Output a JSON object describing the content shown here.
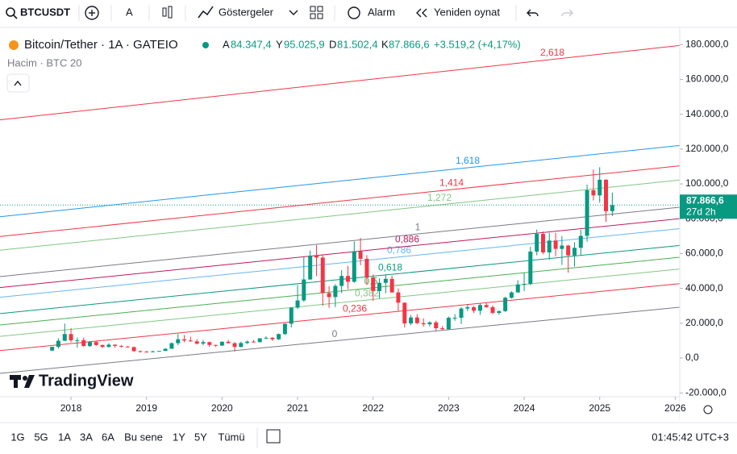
{
  "toolbar": {
    "symbol": "BTCUSDT",
    "font_button": "A",
    "indicators": "Göstergeler",
    "alarm": "Alarm",
    "replay": "Yeniden oynat"
  },
  "legend": {
    "title": "Bitcoin/Tether · 1A · GATEIO",
    "open_key": "A",
    "open": "84.347,4",
    "high_key": "Y",
    "high": "95.025,9",
    "low_key": "D",
    "low": "81.502,4",
    "close_key": "K",
    "close": "87.866,6",
    "change": "+3.519,2 (+4,17%)",
    "volume": "Hacim · BTC 20"
  },
  "logo": "TradingView",
  "footer": {
    "ranges": [
      "1G",
      "5G",
      "1A",
      "3A",
      "6A",
      "Bu sene",
      "1Y",
      "5Y",
      "Tümü"
    ],
    "clock": "01:45:42 UTC+3"
  },
  "chart_data": {
    "type": "candlestick",
    "up_color": "#089981",
    "down_color": "#f23645",
    "x": [
      2017.75,
      2017.833,
      2017.917,
      2018.0,
      2018.083,
      2018.167,
      2018.25,
      2018.333,
      2018.417,
      2018.5,
      2018.583,
      2018.667,
      2018.75,
      2018.833,
      2018.917,
      2019.0,
      2019.083,
      2019.167,
      2019.25,
      2019.333,
      2019.417,
      2019.5,
      2019.583,
      2019.667,
      2019.75,
      2019.833,
      2019.917,
      2020.0,
      2020.083,
      2020.167,
      2020.25,
      2020.333,
      2020.417,
      2020.5,
      2020.583,
      2020.667,
      2020.75,
      2020.833,
      2020.917,
      2021.0,
      2021.083,
      2021.167,
      2021.25,
      2021.333,
      2021.417,
      2021.5,
      2021.583,
      2021.667,
      2021.75,
      2021.833,
      2021.917,
      2022.0,
      2022.083,
      2022.167,
      2022.25,
      2022.333,
      2022.417,
      2022.5,
      2022.583,
      2022.667,
      2022.75,
      2022.833,
      2022.917,
      2023.0,
      2023.083,
      2023.167,
      2023.25,
      2023.333,
      2023.417,
      2023.5,
      2023.583,
      2023.667,
      2023.75,
      2023.833,
      2023.917,
      2024.0,
      2024.083,
      2024.167,
      2024.25,
      2024.333,
      2024.417,
      2024.5,
      2024.583,
      2024.667,
      2024.75,
      2024.833,
      2024.917,
      2025.0,
      2025.083,
      2025.167
    ],
    "open": [
      4300,
      6450,
      9950,
      13800,
      10200,
      10300,
      6900,
      9200,
      7500,
      6400,
      7700,
      7000,
      6600,
      6300,
      4000,
      3700,
      3450,
      3850,
      4100,
      5350,
      8550,
      10800,
      10100,
      9600,
      8300,
      9150,
      7550,
      7200,
      9350,
      8550,
      6400,
      8650,
      9450,
      9150,
      11350,
      11650,
      10800,
      13800,
      19700,
      28950,
      33100,
      45150,
      58800,
      57700,
      37300,
      35050,
      41450,
      47150,
      43800,
      61300,
      57000,
      46300,
      38500,
      43200,
      45500,
      37700,
      31800,
      19900,
      23300,
      20050,
      19400,
      20500,
      17150,
      16550,
      23150,
      23150,
      28450,
      29250,
      27200,
      30450,
      29250,
      25950,
      26950,
      34650,
      37700,
      42300,
      42600,
      61150,
      71300,
      60650,
      67500,
      62700,
      64600,
      58950,
      63300,
      70200,
      96400,
      93400,
      102400,
      84347.4
    ],
    "high": [
      6470,
      11400,
      19800,
      17200,
      11800,
      11700,
      9800,
      10000,
      7800,
      8500,
      7800,
      7400,
      7000,
      6600,
      4400,
      4100,
      4200,
      4100,
      5600,
      9000,
      13900,
      13200,
      12300,
      10900,
      10400,
      9500,
      7700,
      9600,
      10500,
      9200,
      9450,
      10100,
      10400,
      11450,
      12500,
      12100,
      14100,
      19950,
      29300,
      41900,
      58400,
      61800,
      64900,
      59600,
      41300,
      42400,
      50500,
      52900,
      67000,
      69000,
      59100,
      48000,
      45800,
      48200,
      47400,
      40000,
      31900,
      24700,
      25200,
      22800,
      21100,
      21500,
      18400,
      23900,
      25250,
      29200,
      31000,
      29800,
      31400,
      31800,
      30200,
      27500,
      35200,
      38400,
      44700,
      48950,
      63900,
      73800,
      72700,
      71950,
      71950,
      70000,
      65100,
      66500,
      73600,
      99600,
      108300,
      109600,
      102700,
      95025.9
    ],
    "low": [
      4100,
      5500,
      9700,
      9000,
      6000,
      6600,
      6400,
      7000,
      5800,
      6100,
      5900,
      6100,
      6200,
      3500,
      3100,
      3350,
      3400,
      3700,
      4050,
      5300,
      7450,
      9100,
      9350,
      7700,
      7300,
      6500,
      6400,
      6850,
      8450,
      3800,
      6150,
      8100,
      8900,
      8950,
      10950,
      9850,
      10400,
      13200,
      17600,
      28150,
      32300,
      45000,
      47000,
      30000,
      28800,
      29300,
      37300,
      39600,
      43300,
      53300,
      42000,
      32900,
      34300,
      37200,
      37600,
      26700,
      17600,
      18800,
      19600,
      18100,
      18200,
      15500,
      16300,
      16500,
      21400,
      19550,
      26950,
      25800,
      24800,
      28850,
      25150,
      24900,
      26550,
      34100,
      37600,
      38500,
      41900,
      59000,
      59600,
      56500,
      58400,
      53500,
      49000,
      52550,
      58900,
      66800,
      90500,
      89200,
      78200,
      81502.4
    ],
    "close": [
      6450,
      9950,
      13800,
      10200,
      10300,
      6900,
      9200,
      7500,
      6400,
      7700,
      7000,
      6600,
      6300,
      4000,
      3700,
      3450,
      3850,
      4100,
      5350,
      8550,
      10800,
      10100,
      9600,
      8300,
      9150,
      7550,
      7200,
      9350,
      8550,
      6400,
      8650,
      9450,
      9150,
      11350,
      11650,
      10800,
      13800,
      19700,
      28950,
      33100,
      45150,
      58800,
      57700,
      37300,
      35050,
      41450,
      47150,
      43800,
      61300,
      57000,
      46300,
      38500,
      43200,
      45500,
      37700,
      31800,
      19900,
      23300,
      20050,
      19400,
      20500,
      17150,
      16550,
      23150,
      23150,
      28450,
      29250,
      27200,
      30450,
      29250,
      25950,
      26950,
      34650,
      37700,
      42300,
      42600,
      61150,
      71300,
      60650,
      67500,
      62700,
      64600,
      58950,
      63300,
      70200,
      96400,
      93400,
      102400,
      84350,
      87866.6
    ],
    "xlim": [
      2017.06,
      2026.06
    ],
    "xticks": [
      2018,
      2019,
      2020,
      2021,
      2022,
      2023,
      2024,
      2025,
      2026
    ],
    "ylim": [
      -22200,
      188000
    ],
    "yticks": [
      {
        "value": -20000,
        "label": "-20.000,0"
      },
      {
        "value": 0,
        "label": "0,0"
      },
      {
        "value": 20000,
        "label": "20.000,0"
      },
      {
        "value": 40000,
        "label": "40.000,0"
      },
      {
        "value": 60000,
        "label": "60.000,0"
      },
      {
        "value": 80000,
        "label": "80.000,0"
      },
      {
        "value": 100000,
        "label": "100.000,0"
      },
      {
        "value": 120000,
        "label": "120.000,0"
      },
      {
        "value": 140000,
        "label": "140.000,0"
      },
      {
        "value": 160000,
        "label": "160.000,0"
      },
      {
        "value": 180000,
        "label": "180.000,0"
      }
    ],
    "last_price": {
      "value": 87866.6,
      "label": "87.866,6"
    },
    "countdown": "27d 2h",
    "fib": {
      "x": [
        2017.06,
        2026.06
      ],
      "base": [
        -8800,
        29200
      ],
      "top": [
        46800,
        86600
      ],
      "levels": [
        0,
        {
          "value": 0.236,
          "label": "0,236"
        },
        {
          "value": 0.382,
          "label": "0,382"
        },
        {
          "value": 0.5,
          "label": "0,5"
        },
        {
          "value": 0.618,
          "label": "0,618"
        },
        {
          "value": 0.786,
          "label": "0,786"
        },
        {
          "value": 0.886,
          "label": "0,886"
        },
        1,
        {
          "value": 1.272,
          "label": "1,272"
        },
        {
          "value": 1.414,
          "label": "1,414"
        },
        {
          "value": 1.618,
          "label": "1,618"
        },
        {
          "value": 2.618,
          "label": "2,618"
        }
      ],
      "colors": [
        "#787b86",
        "#f23645",
        "#81c784",
        "#4caf50",
        "#089981",
        "#64b5f6",
        "#c2185b",
        "#787b86",
        "#81c784",
        "#f23645",
        "#2196f3",
        "#f23645"
      ]
    }
  }
}
